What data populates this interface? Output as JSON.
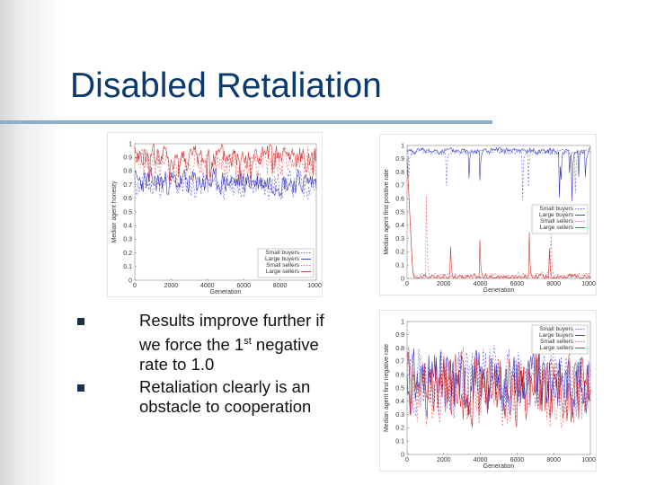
{
  "slide": {
    "title": "Disabled Retaliation",
    "bullets": [
      {
        "pre": "Results improve further if we force the 1",
        "sup": "st",
        "post": " negative rate to 1.0"
      },
      {
        "pre": "Retaliation clearly is an obstacle to cooperation",
        "sup": "",
        "post": ""
      }
    ]
  },
  "colors": {
    "title": "#0d3a6e",
    "rule": "#8faecd",
    "blue": "#2b2bd9",
    "red": "#e02020"
  },
  "chart_data": [
    {
      "type": "line",
      "ylabel": "Median agent honesty",
      "xlabel": "Generation",
      "xlim": [
        0,
        10000
      ],
      "ylim": [
        0,
        1
      ],
      "x_ticks": [
        "0",
        "2000",
        "4000",
        "6000",
        "8000",
        "10000"
      ],
      "y_ticks": [
        "0",
        "0.1",
        "0.2",
        "0.3",
        "0.4",
        "0.5",
        "0.6",
        "0.7",
        "0.8",
        "0.9",
        "1"
      ],
      "legend": {
        "position": "bottom-right",
        "entries": [
          "Small buyers",
          "Large buyers",
          "Small sellers",
          "Large sellers"
        ]
      },
      "series": [
        {
          "name": "Small buyers",
          "color": "#4040e0",
          "dash": "2,2",
          "base": 0.7,
          "amp": 0.09,
          "seed": 11
        },
        {
          "name": "Large buyers",
          "color": "#1515b0",
          "dash": "",
          "base": 0.72,
          "amp": 0.08,
          "seed": 23
        },
        {
          "name": "Small sellers",
          "color": "#e04040",
          "dash": "2,2",
          "base": 0.86,
          "amp": 0.1,
          "seed": 37
        },
        {
          "name": "Large sellers",
          "color": "#c81010",
          "dash": "",
          "base": 0.9,
          "amp": 0.08,
          "seed": 41
        }
      ]
    },
    {
      "type": "line",
      "ylabel": "Median agent first positive rate",
      "xlabel": "Generation",
      "xlim": [
        0,
        10000
      ],
      "ylim": [
        0,
        1
      ],
      "x_ticks": [
        "0",
        "2000",
        "4000",
        "6000",
        "8000",
        "10000"
      ],
      "y_ticks": [
        "0",
        "0.1",
        "0.2",
        "0.3",
        "0.4",
        "0.5",
        "0.6",
        "0.7",
        "0.8",
        "0.9",
        "1"
      ],
      "legend": {
        "position": "center-right",
        "entries": [
          "Small buyers",
          "Large buyers",
          "Small sellers",
          "Large sellers"
        ]
      },
      "series": [
        {
          "name": "Small buyers",
          "color": "#4040e0",
          "dash": "2,2",
          "base": 0.95,
          "amp": 0.02,
          "seed": 5
        },
        {
          "name": "Large buyers",
          "color": "#1515b0",
          "dash": "",
          "base": 0.96,
          "amp": 0.02,
          "seed": 8
        },
        {
          "name": "Small sellers",
          "color": "#e04040",
          "dash": "2,2",
          "base": 0.02,
          "amp": 0.02,
          "seed": 13
        },
        {
          "name": "Large sellers",
          "color": "#c81010",
          "dash": "",
          "base": 0.01,
          "amp": 0.02,
          "seed": 17
        }
      ]
    },
    {
      "type": "line",
      "ylabel": "Median agent first negative rate",
      "xlabel": "Generation",
      "xlim": [
        0,
        10000
      ],
      "ylim": [
        0,
        1
      ],
      "x_ticks": [
        "0",
        "2000",
        "4000",
        "6000",
        "8000",
        "10000"
      ],
      "y_ticks": [
        "0",
        "0.1",
        "0.2",
        "0.3",
        "0.4",
        "0.5",
        "0.6",
        "0.7",
        "0.8",
        "0.9",
        "1"
      ],
      "legend": {
        "position": "top-right",
        "entries": [
          "Small buyers",
          "Large buyers",
          "Small sellers",
          "Large sellers"
        ]
      },
      "series": [
        {
          "name": "Small buyers",
          "color": "#4040e0",
          "dash": "2,2",
          "base": 0.55,
          "amp": 0.22,
          "seed": 29
        },
        {
          "name": "Large buyers",
          "color": "#1515b0",
          "dash": "",
          "base": 0.55,
          "amp": 0.2,
          "seed": 31
        },
        {
          "name": "Small sellers",
          "color": "#e04040",
          "dash": "2,2",
          "base": 0.5,
          "amp": 0.24,
          "seed": 43
        },
        {
          "name": "Large sellers",
          "color": "#c81010",
          "dash": "",
          "base": 0.5,
          "amp": 0.22,
          "seed": 47
        }
      ]
    }
  ]
}
